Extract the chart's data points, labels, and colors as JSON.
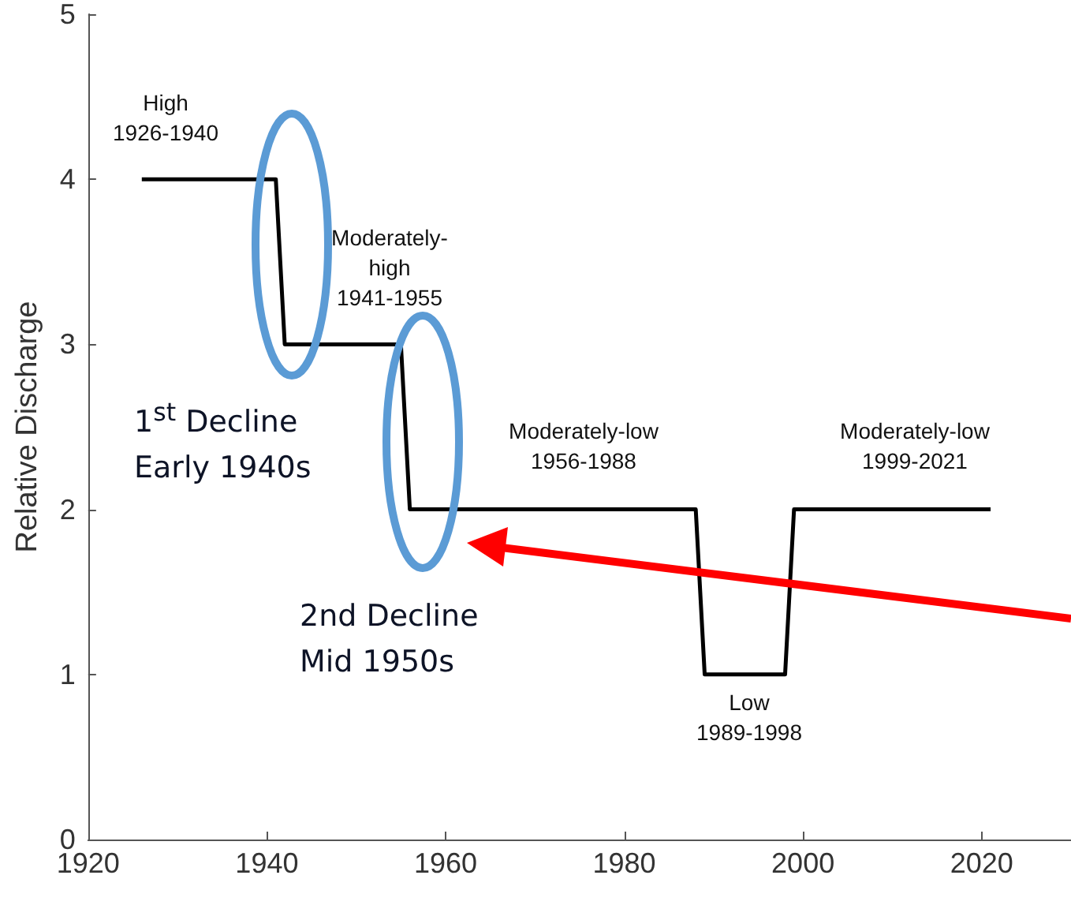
{
  "chart_data": {
    "type": "step",
    "ylabel": "Relative Discharge",
    "x": [
      1926,
      1941,
      1942,
      1955,
      1956,
      1988,
      1989,
      1998,
      1999,
      2021
    ],
    "series": [
      {
        "color": "#000000",
        "values": [
          4,
          4,
          3,
          3,
          2,
          2,
          1,
          1,
          2,
          2
        ]
      }
    ],
    "xlim": [
      1920,
      2030
    ],
    "xticks": [
      1920,
      1940,
      1960,
      1980,
      2000,
      2020
    ],
    "ylim": [
      0,
      5
    ],
    "yticks": [
      0,
      1,
      2,
      3,
      4,
      5
    ],
    "grid": false,
    "marker": "none",
    "line_style": "solid",
    "annotations": [
      "High\n1926-1940",
      "Moderately-\nhigh\n1941-1955",
      "Moderately-low\n1956-1988",
      "Moderately-low\n1999-2021",
      "Low\n1989-1998",
      "1$^{st}$ Decline\nEarly 1940s",
      "2nd Decline\nMid 1950s"
    ]
  }
}
